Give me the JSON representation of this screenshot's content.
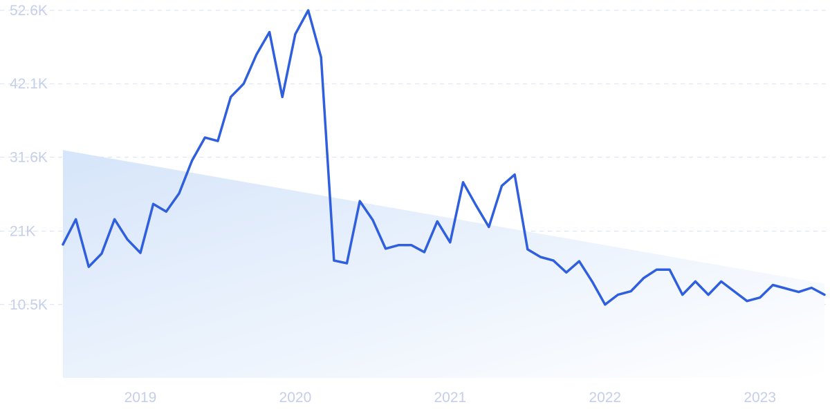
{
  "chart_data": {
    "type": "line",
    "title": "",
    "xlabel": "",
    "ylabel": "",
    "grid": true,
    "ylim": [
      0,
      52600
    ],
    "yticks": [
      {
        "value": 10500,
        "label": "10.5K"
      },
      {
        "value": 21000,
        "label": "21K"
      },
      {
        "value": 31600,
        "label": "31.6K"
      },
      {
        "value": 42100,
        "label": "42.1K"
      },
      {
        "value": 52600,
        "label": "52.6K"
      }
    ],
    "xticks": [
      {
        "value": "2019-01",
        "label": "2019"
      },
      {
        "value": "2020-01",
        "label": "2020"
      },
      {
        "value": "2021-01",
        "label": "2021"
      },
      {
        "value": "2022-01",
        "label": "2022"
      },
      {
        "value": "2023-01",
        "label": "2023"
      }
    ],
    "colors": {
      "line": "#2f5fdc",
      "trend_fill": "#dbe8fa",
      "grid": "#d7e0f2",
      "tick_text": "#c5cfe8"
    },
    "series": [
      {
        "x": [
          "2018-07",
          "2018-08",
          "2018-09",
          "2018-10",
          "2018-11",
          "2018-12",
          "2019-01",
          "2019-02",
          "2019-03",
          "2019-04",
          "2019-05",
          "2019-06",
          "2019-07",
          "2019-08",
          "2019-09",
          "2019-10",
          "2019-11",
          "2019-12",
          "2020-01",
          "2020-02",
          "2020-03",
          "2020-04",
          "2020-05",
          "2020-06",
          "2020-07",
          "2020-08",
          "2020-09",
          "2020-10",
          "2020-11",
          "2020-12",
          "2021-01",
          "2021-02",
          "2021-03",
          "2021-04",
          "2021-05",
          "2021-06",
          "2021-07",
          "2021-08",
          "2021-09",
          "2021-10",
          "2021-11",
          "2021-12",
          "2022-01",
          "2022-02",
          "2022-03",
          "2022-04",
          "2022-05",
          "2022-06",
          "2022-07",
          "2022-08",
          "2022-09",
          "2022-10",
          "2022-11",
          "2022-12",
          "2023-01",
          "2023-02",
          "2023-03",
          "2023-04",
          "2023-05",
          "2023-06"
        ],
        "values": [
          19100,
          22700,
          15900,
          17800,
          22700,
          19800,
          17900,
          24900,
          23800,
          26400,
          31100,
          34400,
          33900,
          40200,
          42100,
          46300,
          49500,
          40200,
          49200,
          52600,
          45900,
          16800,
          16400,
          25300,
          22600,
          18500,
          19000,
          19000,
          18000,
          22400,
          19400,
          28000,
          24700,
          21600,
          27500,
          29100,
          18400,
          17300,
          16800,
          15100,
          16700,
          13800,
          10500,
          11900,
          12400,
          14300,
          15500,
          15500,
          11900,
          13800,
          11900,
          13800,
          12400,
          11000,
          11500,
          13300,
          12800,
          12300,
          12900,
          11900
        ]
      }
    ],
    "trend": {
      "start": {
        "x": "2018-07",
        "y": 32600
      },
      "end": {
        "x": "2023-06",
        "y": 13500
      }
    }
  }
}
